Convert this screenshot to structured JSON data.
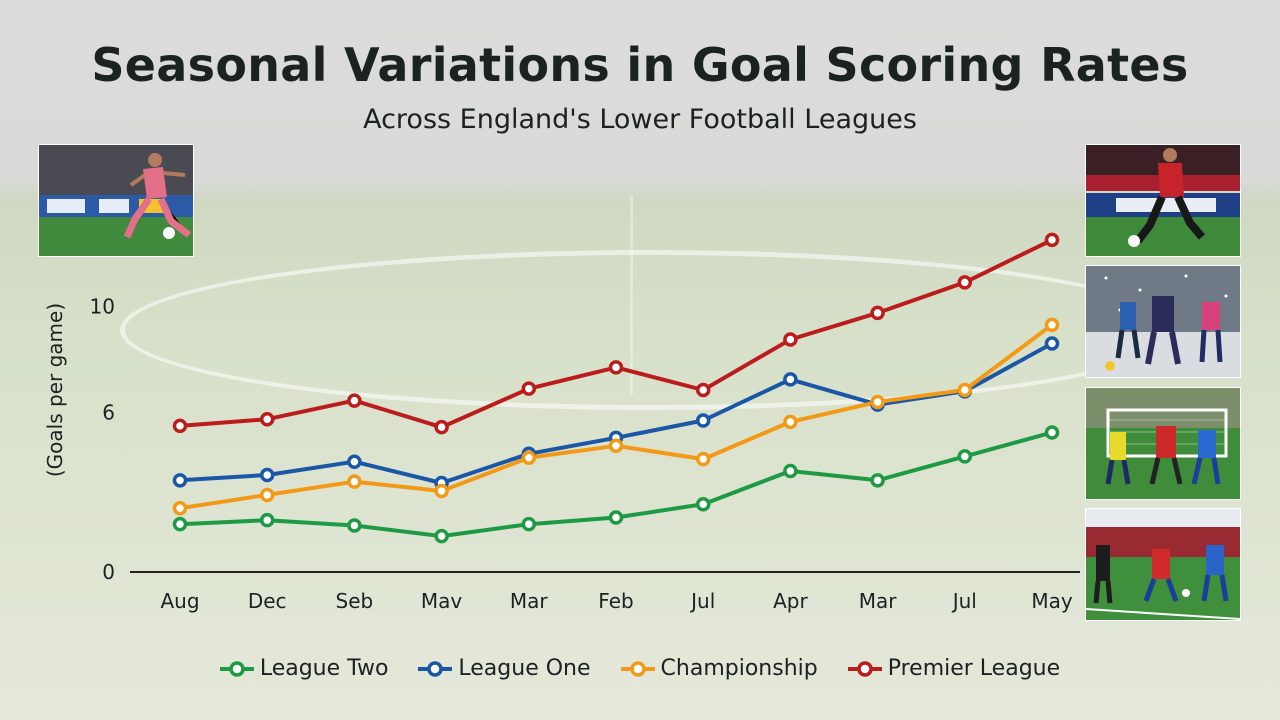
{
  "header": {
    "title": "Seasonal Variations in Goal Scoring Rates",
    "subtitle": "Across England's Lower Football Leagues"
  },
  "photos": [
    {
      "name": "photo-player-kicking-ball",
      "icon": "player-kick-icon"
    },
    {
      "name": "photo-red-player-dribbling",
      "icon": "player-dribble-icon"
    },
    {
      "name": "photo-snow-match",
      "icon": "snow-match-icon"
    },
    {
      "name": "photo-goalmouth-action",
      "icon": "goalmouth-icon"
    },
    {
      "name": "photo-stadium-match",
      "icon": "stadium-match-icon"
    }
  ],
  "chart_data": {
    "type": "line",
    "title": "Seasonal Variations in Goal Scoring Rates",
    "subtitle": "Across England's Lower Football Leagues",
    "xlabel": "",
    "ylabel": "(Goals per game)",
    "categories": [
      "Aug",
      "Dec",
      "Seb",
      "Mav",
      "Mar",
      "Feb",
      "Jul",
      "Apr",
      "Mar",
      "Jul",
      "May"
    ],
    "yticks": [
      0,
      6,
      10
    ],
    "ylim": [
      0,
      14
    ],
    "grid": false,
    "legend_position": "bottom",
    "series": [
      {
        "name": "League Two",
        "color": "#1e9a45",
        "values": [
          1.8,
          1.95,
          1.75,
          1.35,
          1.8,
          2.05,
          2.55,
          3.8,
          3.45,
          4.35,
          5.25
        ]
      },
      {
        "name": "League One",
        "color": "#1a57a6",
        "values": [
          3.45,
          3.65,
          4.15,
          3.35,
          4.45,
          5.05,
          5.7,
          7.25,
          6.3,
          6.8,
          8.6
        ]
      },
      {
        "name": "Championship",
        "color": "#f29a18",
        "values": [
          2.4,
          2.9,
          3.4,
          3.05,
          4.3,
          4.75,
          4.25,
          5.65,
          6.4,
          6.85,
          9.3
        ]
      },
      {
        "name": "Premier League",
        "color": "#bb1c1c",
        "values": [
          5.5,
          5.75,
          6.45,
          5.45,
          6.9,
          7.7,
          6.85,
          8.75,
          9.75,
          10.9,
          12.5
        ]
      }
    ]
  }
}
